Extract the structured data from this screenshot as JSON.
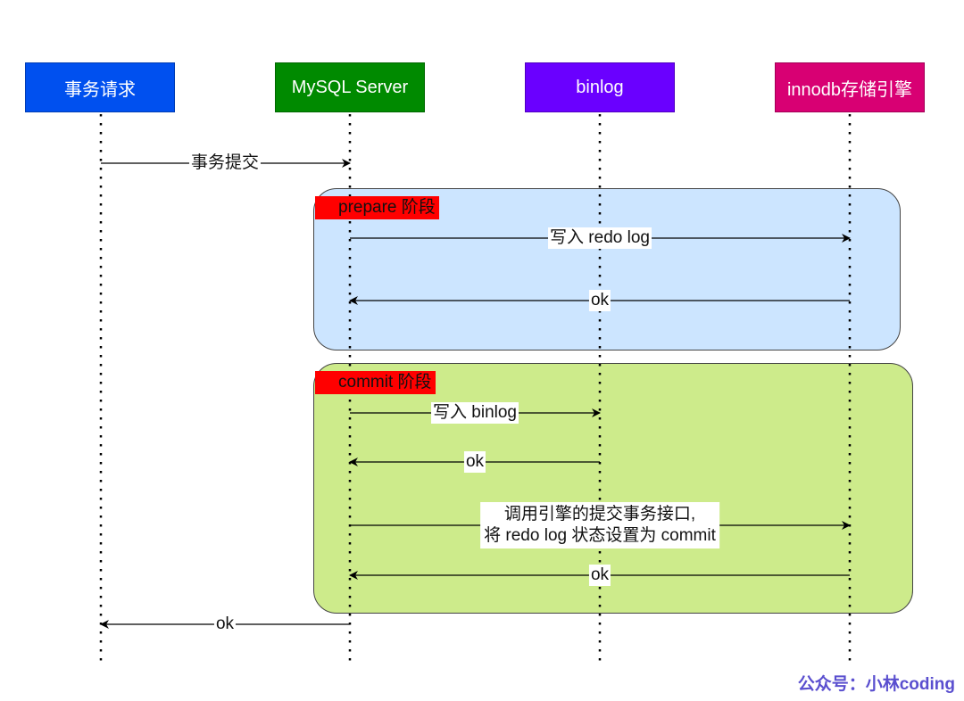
{
  "actors": [
    {
      "label": "事务请求",
      "color": "#0050ef"
    },
    {
      "label": "MySQL Server",
      "color": "#008a00"
    },
    {
      "label": "binlog",
      "color": "#6a00ff"
    },
    {
      "label": "innodb存储引擎",
      "color": "#d80073"
    }
  ],
  "phases": [
    {
      "label": "prepare 阶段",
      "fill": "#cce5ff"
    },
    {
      "label": "commit 阶段",
      "fill": "#cdeb8b"
    }
  ],
  "messages": [
    {
      "from": "事务请求",
      "to": "MySQL Server",
      "label": "事务提交"
    },
    {
      "from": "MySQL Server",
      "to": "innodb存储引擎",
      "label": "写入 redo log"
    },
    {
      "from": "innodb存储引擎",
      "to": "MySQL Server",
      "label": "ok"
    },
    {
      "from": "MySQL Server",
      "to": "binlog",
      "label": "写入 binlog"
    },
    {
      "from": "binlog",
      "to": "MySQL Server",
      "label": "ok"
    },
    {
      "from": "MySQL Server",
      "to": "innodb存储引擎",
      "label": "调用引擎的提交事务接口,",
      "label2": "将 redo log 状态设置为 commit"
    },
    {
      "from": "innodb存储引擎",
      "to": "MySQL Server",
      "label": "ok"
    },
    {
      "from": "MySQL Server",
      "to": "事务请求",
      "label": "ok"
    }
  ],
  "watermark": "公众号：小林coding"
}
